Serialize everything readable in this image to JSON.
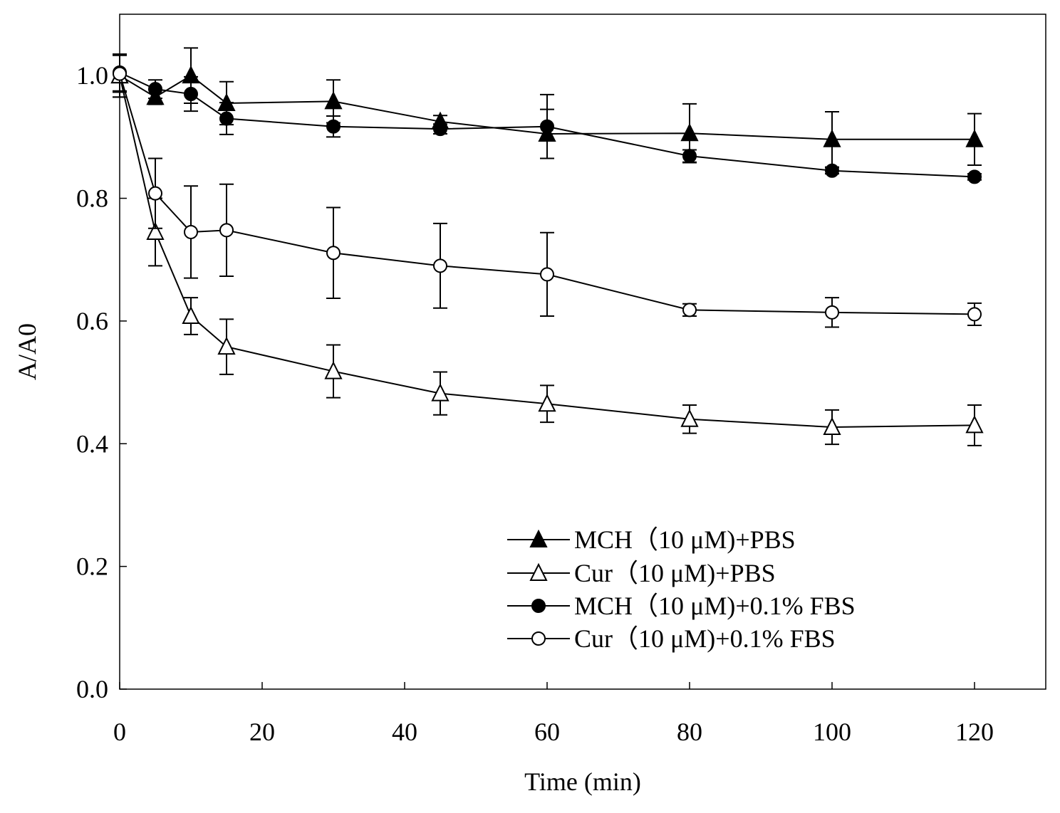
{
  "chart_data": {
    "type": "line",
    "title": "",
    "xlabel": "Time (min)",
    "ylabel": "A/A0",
    "xlim": [
      0,
      130
    ],
    "ylim": [
      0,
      1.1
    ],
    "x_ticks": [
      0,
      20,
      40,
      60,
      80,
      100,
      120
    ],
    "y_ticks": [
      0.0,
      0.2,
      0.4,
      0.6,
      0.8,
      1.0
    ],
    "x_tick_labels": [
      "0",
      "20",
      "40",
      "60",
      "80",
      "100",
      "120"
    ],
    "y_tick_labels": [
      "0.0",
      "0.2",
      "0.4",
      "0.6",
      "0.8",
      "1.0"
    ],
    "grid": false,
    "legend_position": "lower-right",
    "x": [
      0,
      5,
      10,
      15,
      30,
      45,
      60,
      80,
      100,
      120
    ],
    "series": [
      {
        "name": "MCH（10 μM)+PBS",
        "marker": "triangle",
        "fill": "filled",
        "values": [
          1.0,
          0.965,
          1.0,
          0.955,
          0.958,
          0.925,
          0.905,
          0.906,
          0.896,
          0.896
        ],
        "errors": [
          0.035,
          0.012,
          0.045,
          0.035,
          0.035,
          0.01,
          0.04,
          0.048,
          0.045,
          0.042
        ]
      },
      {
        "name": "Cur（10 μM)+PBS",
        "marker": "triangle",
        "fill": "open",
        "values": [
          1.0,
          0.745,
          0.608,
          0.558,
          0.518,
          0.482,
          0.465,
          0.44,
          0.427,
          0.43
        ],
        "errors": [
          0.035,
          0.055,
          0.03,
          0.045,
          0.043,
          0.035,
          0.03,
          0.023,
          0.028,
          0.033
        ]
      },
      {
        "name": "MCH（10 μM)+0.1% FBS",
        "marker": "circle",
        "fill": "filled",
        "values": [
          1.005,
          0.978,
          0.97,
          0.93,
          0.917,
          0.913,
          0.917,
          0.869,
          0.845,
          0.835
        ],
        "errors": [
          0.03,
          0.015,
          0.028,
          0.026,
          0.017,
          0.008,
          0.052,
          0.01,
          0.005,
          0.005
        ]
      },
      {
        "name": "Cur（10 μM)+0.1% FBS",
        "marker": "circle",
        "fill": "open",
        "values": [
          1.003,
          0.808,
          0.745,
          0.748,
          0.711,
          0.69,
          0.676,
          0.618,
          0.614,
          0.611
        ],
        "errors": [
          0.03,
          0.057,
          0.075,
          0.075,
          0.074,
          0.069,
          0.068,
          0.01,
          0.024,
          0.018
        ]
      }
    ]
  }
}
